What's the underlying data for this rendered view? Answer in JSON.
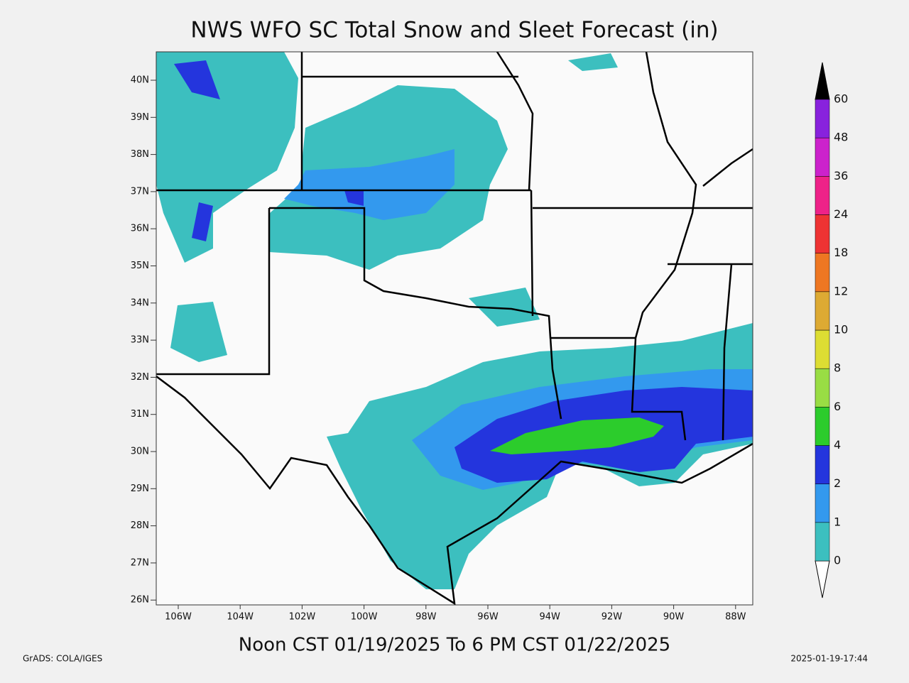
{
  "title": "NWS WFO SC Total Snow and Sleet Forecast (in)",
  "subtitle": "Noon CST 01/19/2025 To 6 PM CST 01/22/2025",
  "credit": "GrADS: COLA/IGES",
  "timestamp": "2025-01-19-17:44",
  "lat_labels": [
    "40N",
    "39N",
    "38N",
    "37N",
    "36N",
    "35N",
    "34N",
    "33N",
    "32N",
    "31N",
    "30N",
    "29N",
    "28N",
    "27N",
    "26N"
  ],
  "lon_labels": [
    "106W",
    "104W",
    "102W",
    "100W",
    "98W",
    "96W",
    "94W",
    "92W",
    "90W",
    "88W"
  ],
  "colorbar": {
    "levels": [
      0,
      1,
      2,
      4,
      6,
      8,
      10,
      12,
      18,
      24,
      36,
      48,
      60
    ],
    "colors": [
      "#3cbfbf",
      "#3399ee",
      "#2435dd",
      "#2ccc2c",
      "#99dd44",
      "#dddd33",
      "#ddaa33",
      "#ee7722",
      "#ee3333",
      "#ee2288",
      "#cc22cc",
      "#8822dd"
    ]
  }
}
